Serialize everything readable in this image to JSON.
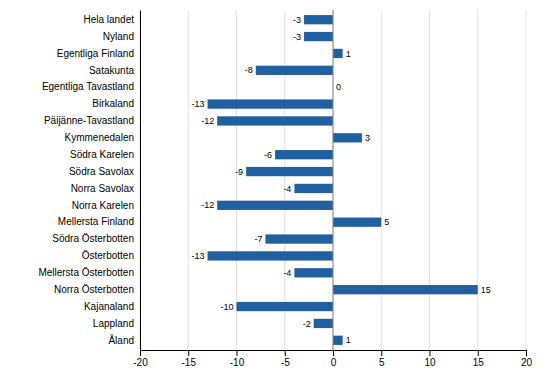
{
  "chart_data": {
    "type": "bar",
    "orientation": "horizontal",
    "categories": [
      "Hela landet",
      "Nyland",
      "Egentliga Finland",
      "Satakunta",
      "Egentliga Tavastland",
      "Birkaland",
      "Päijänne-Tavastland",
      "Kymmenedalen",
      "Södra Karelen",
      "Södra Savolax",
      "Norra Savolax",
      "Norra Karelen",
      "Mellersta Finland",
      "Södra Österbotten",
      "Österbotten",
      "Mellersta Österbotten",
      "Norra Österbotten",
      "Kajanaland",
      "Lappland",
      "Åland"
    ],
    "values": [
      -3,
      -3,
      1,
      -8,
      0,
      -13,
      -12,
      3,
      -6,
      -9,
      -4,
      -12,
      5,
      -7,
      -13,
      -4,
      15,
      -10,
      -2,
      1
    ],
    "color": "#2060a0",
    "xlim": [
      -20,
      20
    ],
    "xticks": [
      -20,
      -15,
      -10,
      -5,
      0,
      5,
      10,
      15,
      20
    ],
    "grid": true,
    "data_labels": true
  }
}
